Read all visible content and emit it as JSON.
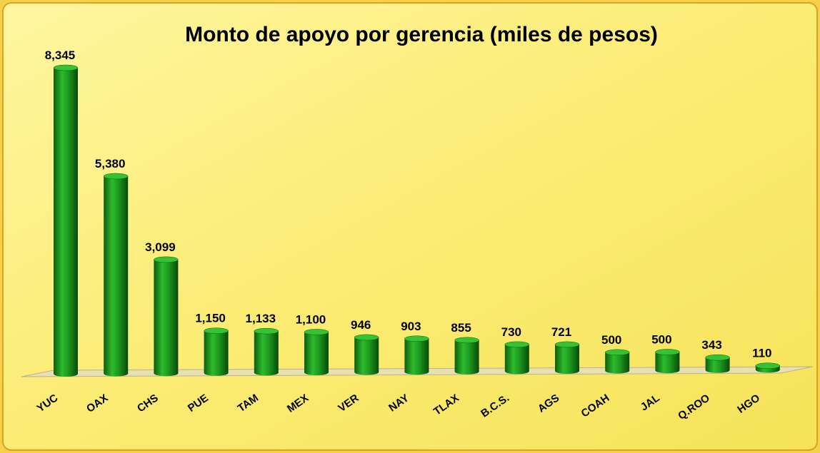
{
  "chart_data": {
    "type": "bar",
    "title": "Monto de apoyo por gerencia (miles de pesos)",
    "categories": [
      "YUC",
      "OAX",
      "CHS",
      "PUE",
      "TAM",
      "MEX",
      "VER",
      "NAY",
      "TLAX",
      "B.C.S.",
      "AGS",
      "COAH",
      "JAL",
      "Q.ROO",
      "HGO"
    ],
    "values": [
      8345,
      5380,
      3099,
      1150,
      1133,
      1100,
      946,
      903,
      855,
      730,
      721,
      500,
      500,
      343,
      110
    ],
    "value_labels": [
      "8,345",
      "5,380",
      "3,099",
      "1,150",
      "1,133",
      "1,100",
      "946",
      "903",
      "855",
      "730",
      "721",
      "500",
      "500",
      "343",
      "110"
    ],
    "color": "#1e9a1e"
  }
}
